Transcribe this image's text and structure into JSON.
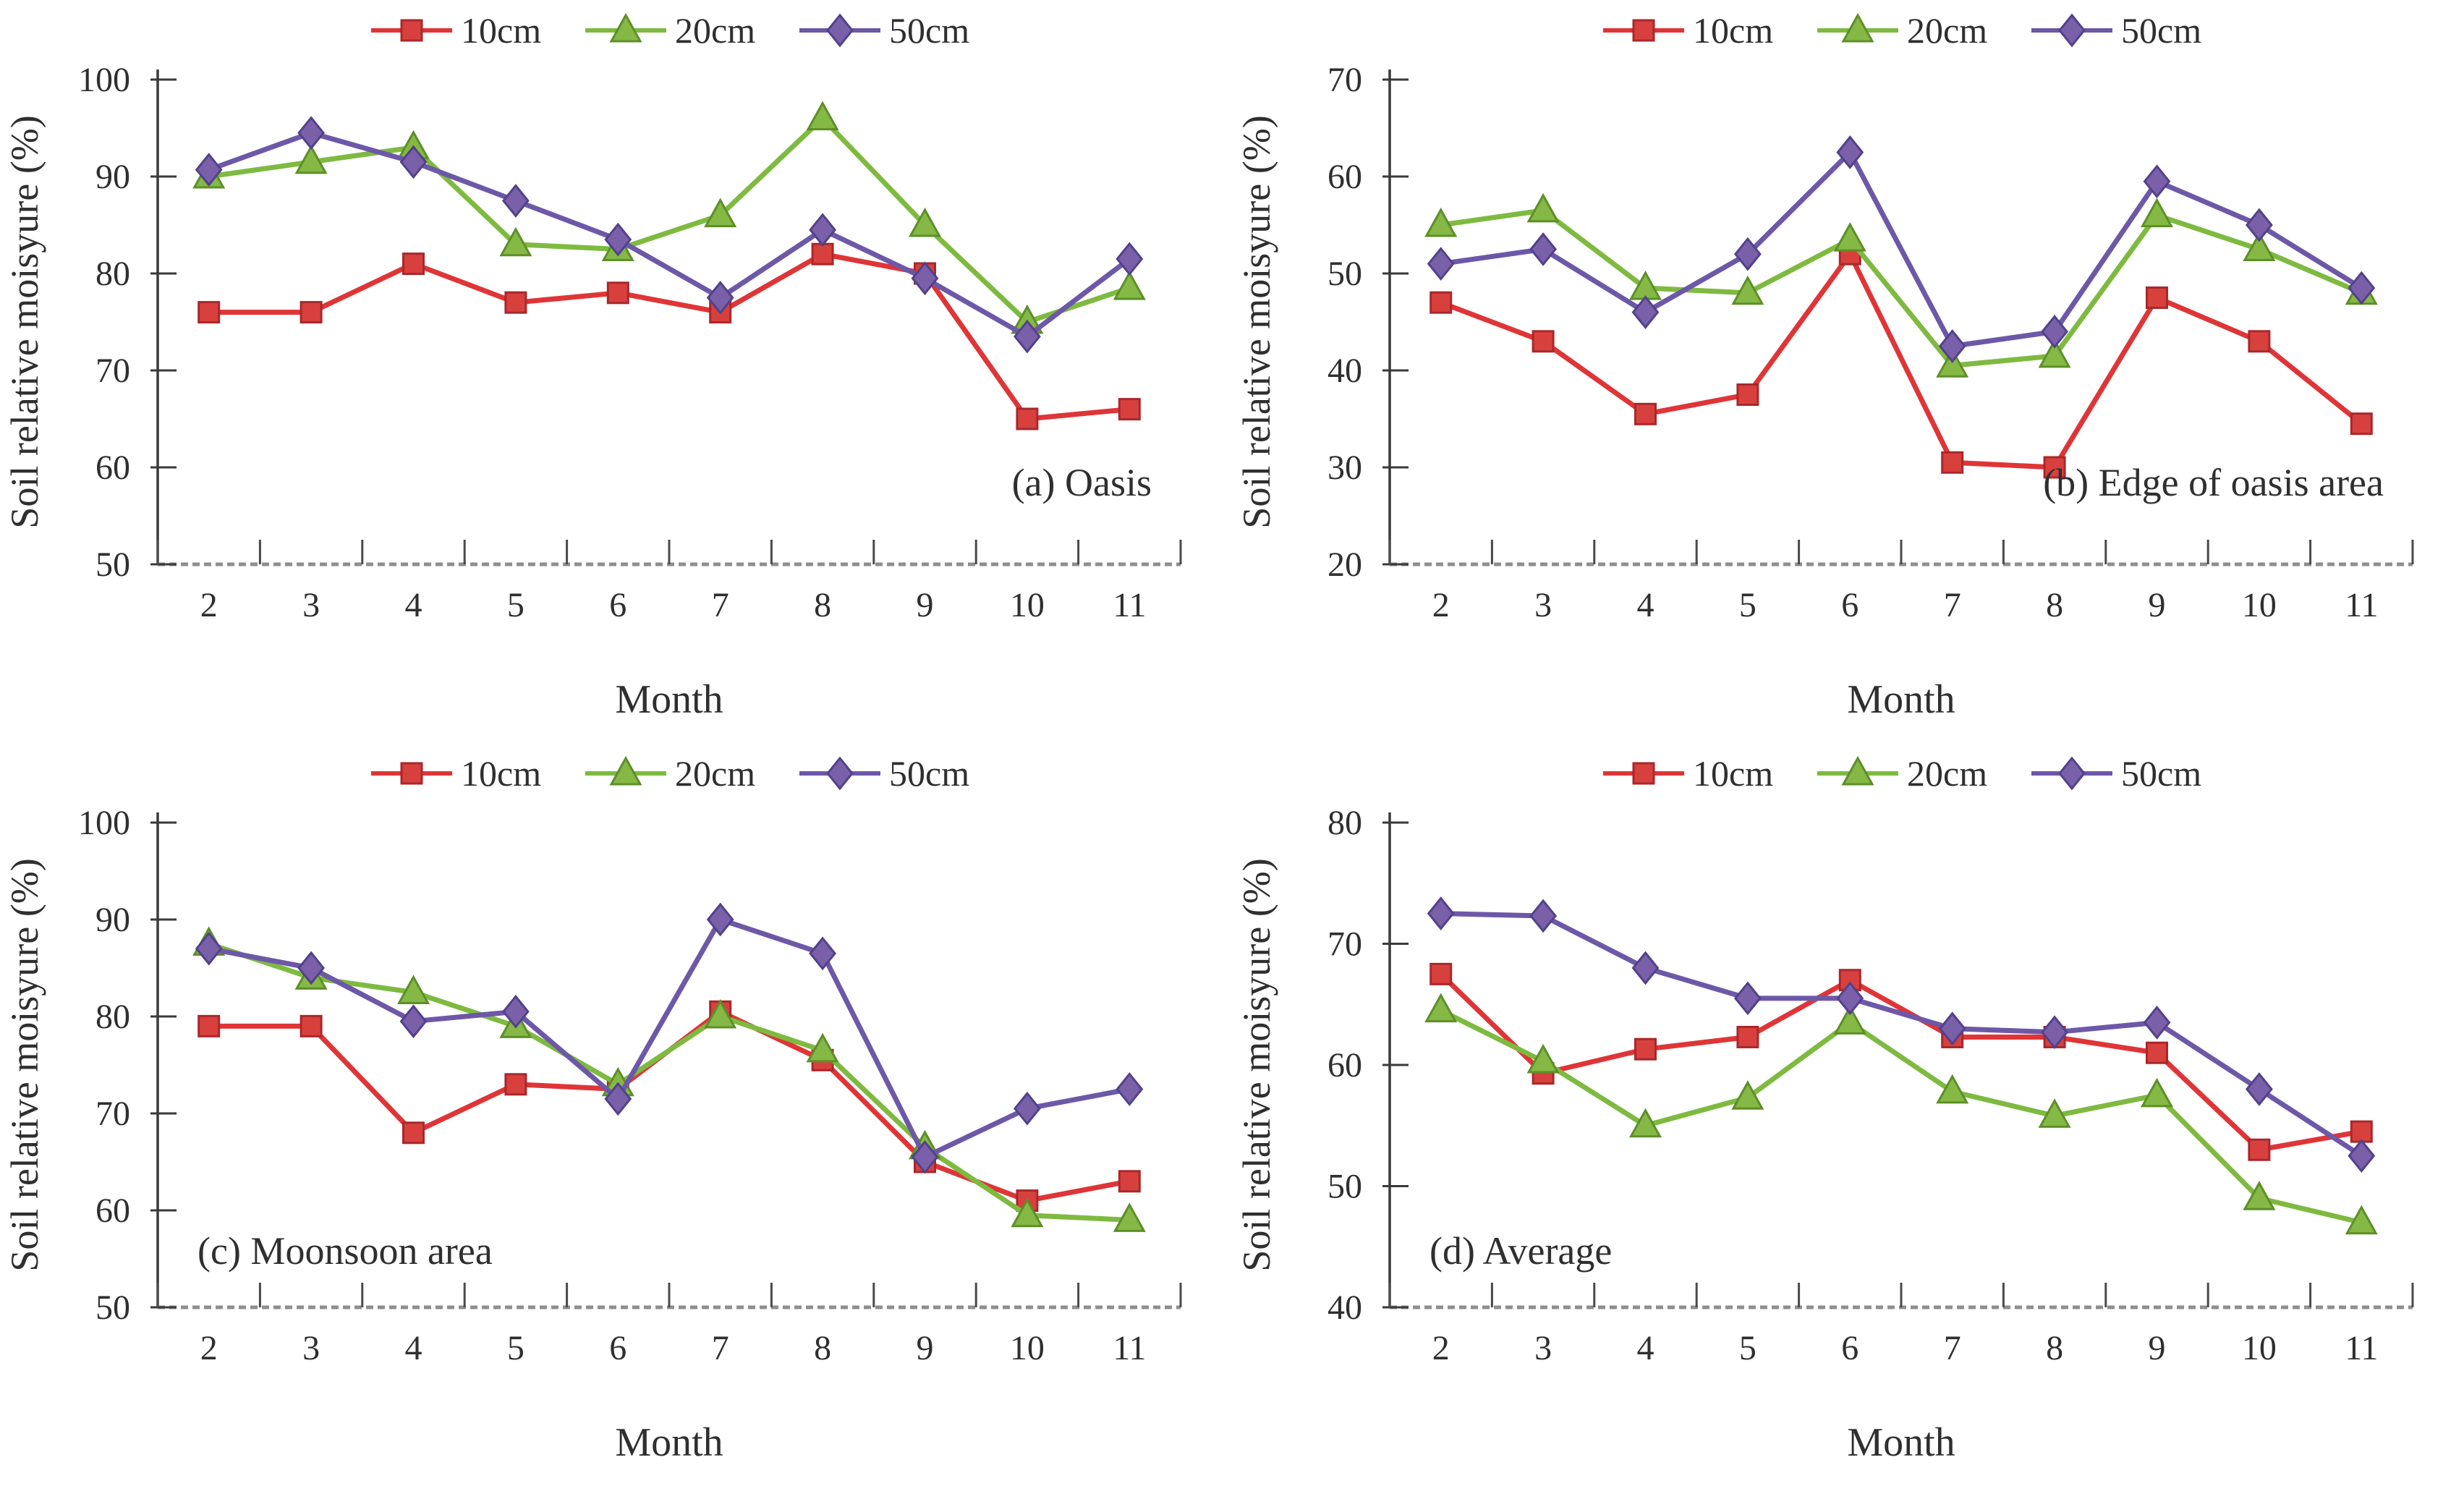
{
  "page": {
    "background": "#ffffff"
  },
  "shared": {
    "ylabel": "Soil relative moisyure (%)",
    "xlabel": "Month",
    "months": [
      2,
      3,
      4,
      5,
      6,
      7,
      8,
      9,
      10,
      11
    ],
    "legend": [
      {
        "name": "10cm",
        "marker": "square",
        "color": "#df3537",
        "marker_fill": "#d8403e",
        "marker_edge": "#a8282b"
      },
      {
        "name": "20cm",
        "marker": "triangle",
        "color": "#7eba40",
        "marker_fill": "#85b845",
        "marker_edge": "#5d8f28"
      },
      {
        "name": "50cm",
        "marker": "diamond",
        "color": "#6d58a8",
        "marker_fill": "#7a60a8",
        "marker_edge": "#52418b"
      }
    ],
    "axis": {
      "text_color": "#3c3c3c",
      "y_axis_color": "#3a3a3a",
      "x_axis_color": "#8e8e8e"
    }
  },
  "chart_data": [
    {
      "type": "line",
      "title": "(a) Oasis",
      "title_side": "right",
      "xlabel": "Month",
      "ylabel": "Soil relative moisyure (%)",
      "x": [
        2,
        3,
        4,
        5,
        6,
        7,
        8,
        9,
        10,
        11
      ],
      "ylim": [
        50,
        100
      ],
      "yticks": [
        50,
        60,
        70,
        80,
        90,
        100
      ],
      "legend_position": "top-center",
      "grid": false,
      "series": [
        {
          "name": "10cm",
          "values": [
            76,
            76,
            81,
            77,
            78,
            76,
            82,
            80,
            65,
            66
          ]
        },
        {
          "name": "20cm",
          "values": [
            90,
            91.5,
            93,
            83,
            82.5,
            86,
            96,
            85,
            75,
            78.5
          ]
        },
        {
          "name": "50cm",
          "values": [
            90.7,
            94.5,
            91.5,
            87.5,
            83.5,
            77.5,
            84.5,
            79.5,
            73.5,
            81.5
          ]
        }
      ]
    },
    {
      "type": "line",
      "title": "(b) Edge of oasis area",
      "title_side": "right",
      "xlabel": "Month",
      "ylabel": "Soil relative moisyure (%)",
      "x": [
        2,
        3,
        4,
        5,
        6,
        7,
        8,
        9,
        10,
        11
      ],
      "ylim": [
        20,
        70
      ],
      "yticks": [
        20,
        30,
        40,
        50,
        60,
        70
      ],
      "legend_position": "top-center",
      "grid": false,
      "series": [
        {
          "name": "10cm",
          "values": [
            47,
            43,
            35.5,
            37.5,
            52,
            30.5,
            30,
            47.5,
            43,
            34.5
          ]
        },
        {
          "name": "20cm",
          "values": [
            55,
            56.5,
            48.5,
            48,
            53.5,
            40.5,
            41.5,
            56,
            52.5,
            48
          ]
        },
        {
          "name": "50cm",
          "values": [
            51,
            52.5,
            46,
            52,
            62.5,
            42.5,
            44,
            59.5,
            55,
            48.5
          ]
        }
      ]
    },
    {
      "type": "line",
      "title": "(c) Moonsoon area",
      "title_side": "left",
      "xlabel": "Month",
      "ylabel": "Soil relative moisyure (%)",
      "x": [
        2,
        3,
        4,
        5,
        6,
        7,
        8,
        9,
        10,
        11
      ],
      "ylim": [
        50,
        100
      ],
      "yticks": [
        50,
        60,
        70,
        80,
        90,
        100
      ],
      "legend_position": "top-center",
      "grid": false,
      "series": [
        {
          "name": "10cm",
          "values": [
            79,
            79,
            68,
            73,
            72.5,
            80.5,
            75.5,
            65,
            61,
            63
          ]
        },
        {
          "name": "20cm",
          "values": [
            87.5,
            84,
            82.5,
            79,
            73,
            80,
            76.5,
            66.5,
            59.5,
            59
          ]
        },
        {
          "name": "50cm",
          "values": [
            87,
            85,
            79.5,
            80.5,
            71.5,
            90,
            86.5,
            65.5,
            70.5,
            72.5
          ]
        }
      ]
    },
    {
      "type": "line",
      "title": "(d) Average",
      "title_side": "left",
      "xlabel": "Month",
      "ylabel": "Soil relative moisyure (%)",
      "x": [
        2,
        3,
        4,
        5,
        6,
        7,
        8,
        9,
        10,
        11
      ],
      "ylim": [
        40,
        80
      ],
      "yticks": [
        40,
        50,
        60,
        70,
        80
      ],
      "legend_position": "top-center",
      "grid": false,
      "series": [
        {
          "name": "10cm",
          "values": [
            67.5,
            59.3,
            61.3,
            62.3,
            67,
            62.3,
            62.3,
            61,
            53,
            54.5
          ]
        },
        {
          "name": "20cm",
          "values": [
            64.5,
            60.3,
            55,
            57.3,
            63.5,
            57.8,
            55.8,
            57.5,
            49,
            47
          ]
        },
        {
          "name": "50cm",
          "values": [
            72.5,
            72.3,
            68,
            65.5,
            65.5,
            63,
            62.7,
            63.5,
            58,
            52.5
          ]
        }
      ]
    }
  ]
}
